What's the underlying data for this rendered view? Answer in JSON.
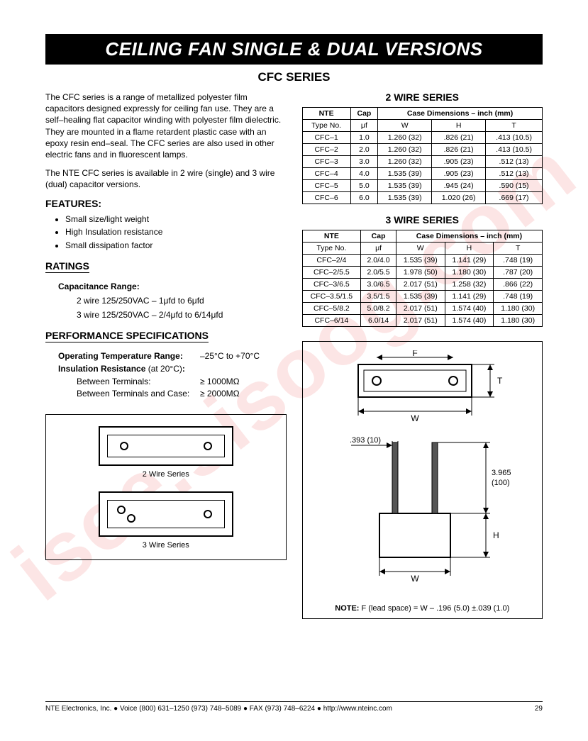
{
  "watermark": "isee.sisoog.com",
  "title": "CEILING FAN SINGLE & DUAL VERSIONS",
  "subtitle": "CFC SERIES",
  "intro_p1": "The CFC series is a range of metallized polyester film capacitors designed expressly for ceiling fan use. They are a self–healing flat capacitor winding with polyester film dielectric. They are mounted in a flame retardent plastic case with an epoxy resin end–seal. The CFC series are also used in other electric fans and in fluorescent lamps.",
  "intro_p2": "The NTE CFC series is available in 2 wire (single) and 3 wire (dual) capacitor versions.",
  "features_heading": "FEATURES:",
  "features": [
    "Small size/light weight",
    "High Insulation resistance",
    "Small dissipation factor"
  ],
  "ratings_heading": "RATINGS",
  "cap_range_heading": "Capacitance Range:",
  "cap_range_2wire": "2 wire 125/250VAC – 1μfd to 6μfd",
  "cap_range_3wire": "3 wire 125/250VAC – 2/4μfd to 6/14μfd",
  "perf_heading": "PERFORMANCE SPECIFICATIONS",
  "op_temp_label": "Operating Temperature Range:",
  "op_temp_value": "–25°C to +70°C",
  "insul_label": "Insulation Resistance (at 20°C):",
  "insul_terminals_label": "Between Terminals:",
  "insul_terminals_value": "≥ 1000MΩ",
  "insul_case_label": "Between Terminals and Case:",
  "insul_case_value": "≥ 2000MΩ",
  "table2_title": "2 WIRE SERIES",
  "table2_headers": {
    "col1a": "NTE",
    "col1b": "Type No.",
    "col2a": "Cap",
    "col2b": "μf",
    "dim": "Case Dimensions – inch (mm)",
    "w": "W",
    "h": "H",
    "t": "T"
  },
  "table2_rows": [
    {
      "type": "CFC–1",
      "cap": "1.0",
      "w": "1.260 (32)",
      "h": ".826 (21)",
      "t": ".413 (10.5)"
    },
    {
      "type": "CFC–2",
      "cap": "2.0",
      "w": "1.260 (32)",
      "h": ".826 (21)",
      "t": ".413 (10.5)"
    },
    {
      "type": "CFC–3",
      "cap": "3.0",
      "w": "1.260 (32)",
      "h": ".905 (23)",
      "t": ".512 (13)"
    },
    {
      "type": "CFC–4",
      "cap": "4.0",
      "w": "1.535 (39)",
      "h": ".905 (23)",
      "t": ".512 (13)"
    },
    {
      "type": "CFC–5",
      "cap": "5.0",
      "w": "1.535 (39)",
      "h": ".945 (24)",
      "t": ".590 (15)"
    },
    {
      "type": "CFC–6",
      "cap": "6.0",
      "w": "1.535 (39)",
      "h": "1.020 (26)",
      "t": ".669 (17)"
    }
  ],
  "table3_title": "3 WIRE SERIES",
  "table3_rows": [
    {
      "type": "CFC–2/4",
      "cap": "2.0/4.0",
      "w": "1.535 (39)",
      "h": "1.141 (29)",
      "t": ".748 (19)"
    },
    {
      "type": "CFC–2/5.5",
      "cap": "2.0/5.5",
      "w": "1.978 (50)",
      "h": "1.180 (30)",
      "t": ".787 (20)"
    },
    {
      "type": "CFC–3/6.5",
      "cap": "3.0/6.5",
      "w": "2.017 (51)",
      "h": "1.258 (32)",
      "t": ".866 (22)"
    },
    {
      "type": "CFC–3.5/1.5",
      "cap": "3.5/1.5",
      "w": "1.535 (39)",
      "h": "1.141 (29)",
      "t": ".748 (19)"
    },
    {
      "type": "CFC–5/8.2",
      "cap": "5.0/8.2",
      "w": "2.017 (51)",
      "h": "1.574 (40)",
      "t": "1.180 (30)"
    },
    {
      "type": "CFC–6/14",
      "cap": "6.0/14",
      "w": "2.017 (51)",
      "h": "1.574 (40)",
      "t": "1.180 (30)"
    }
  ],
  "fig_2wire_label": "2 Wire Series",
  "fig_3wire_label": "3 Wire Series",
  "diag_dim_lead": ".393 (10)",
  "diag_dim_leadlen": "3.965\n(100)",
  "diag_note_prefix": "NOTE: ",
  "diag_note": "F (lead space) = W – .196 (5.0) ±.039 (1.0)",
  "footer_company": "NTE Electronics, Inc. ● Voice (800) 631–1250 (973) 748–5089 ● FAX (973) 748–6224 ● http://www.nteinc.com",
  "page_number": "29"
}
